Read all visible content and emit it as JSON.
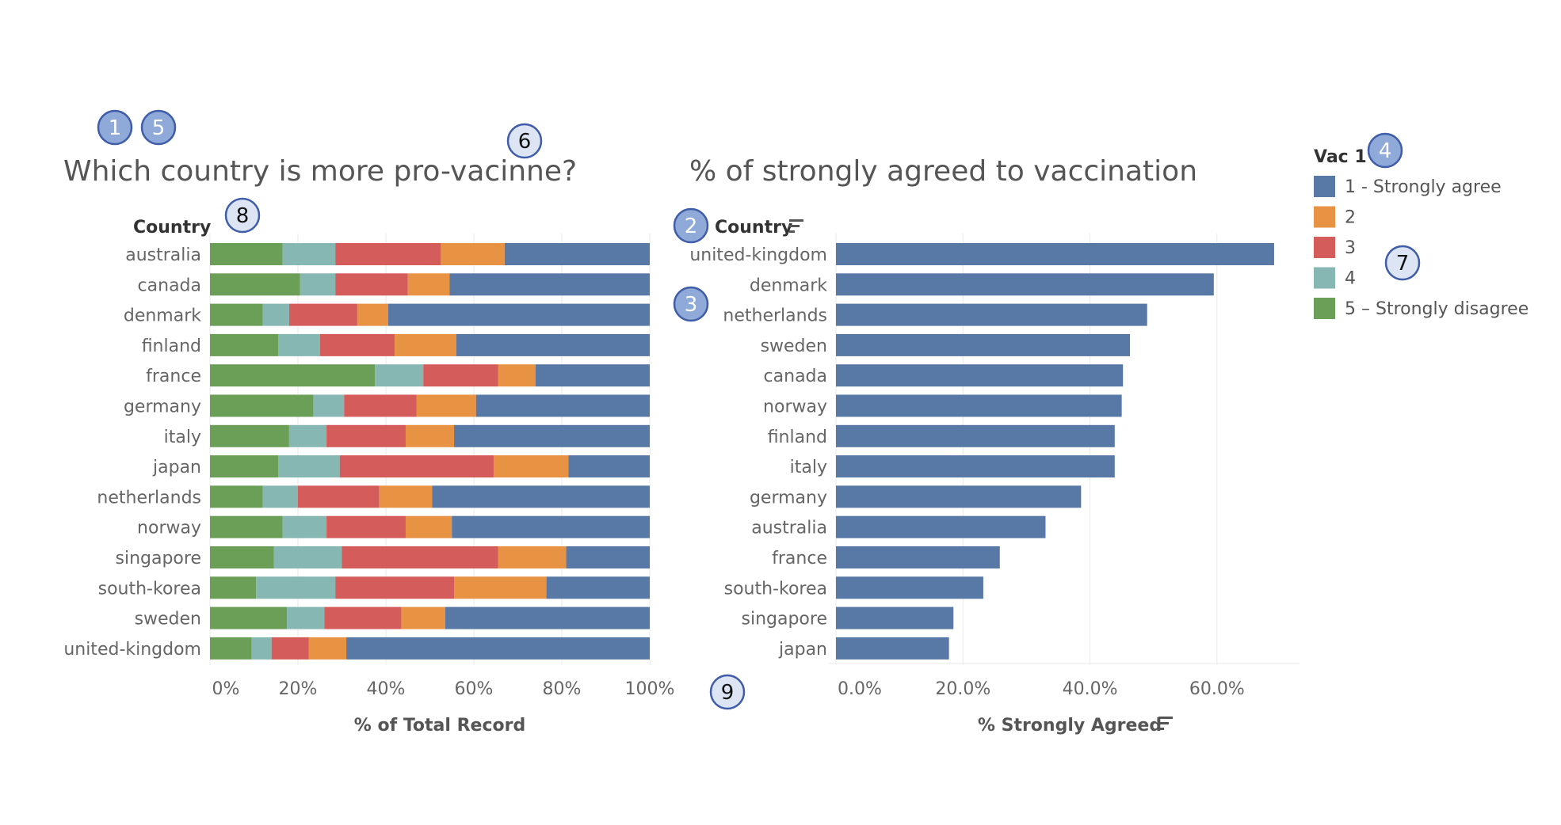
{
  "colors": {
    "l1": "#5878a6",
    "l2": "#e89243",
    "l3": "#d45c5b",
    "l4": "#86b7b2",
    "l5": "#6b9f58",
    "text_dark": "#333333",
    "text_mid": "#555555",
    "axis_text": "#666666",
    "grid": "#e9e9e9",
    "badge_blue_fill": "#8fa9d8",
    "badge_blue_stroke": "#3f5da8",
    "badge_white_fill": "#dde5f4",
    "badge_white_stroke": "#3f5da8"
  },
  "chart_data": [
    {
      "type": "bar",
      "stacked": true,
      "orientation": "horizontal",
      "title": "Which country is more pro-vacinne?",
      "row_header": "Country",
      "xlabel": "% of Total Record",
      "xlim": [
        0,
        100
      ],
      "xticks": [
        "0%",
        "20%",
        "40%",
        "60%",
        "80%",
        "100%"
      ],
      "xtick_values": [
        0,
        20,
        40,
        60,
        80,
        100
      ],
      "categories": [
        "australia",
        "canada",
        "denmark",
        "finland",
        "france",
        "germany",
        "italy",
        "japan",
        "netherlands",
        "norway",
        "singapore",
        "south-korea",
        "sweden",
        "united-kingdom"
      ],
      "series": [
        {
          "name": "5 – Strongly disagree",
          "color_key": "l5",
          "values": [
            16.5,
            20.5,
            12,
            15.5,
            37.5,
            23.5,
            18,
            15.5,
            12,
            16.5,
            14.5,
            10.5,
            17.5,
            9.5
          ]
        },
        {
          "name": "4",
          "color_key": "l4",
          "values": [
            12,
            8,
            6,
            9.5,
            11,
            7,
            8.5,
            14,
            8,
            10,
            15.5,
            18,
            8.5,
            4.5
          ]
        },
        {
          "name": "3",
          "color_key": "l3",
          "values": [
            24,
            16.5,
            15.5,
            17,
            17,
            16.5,
            18,
            35,
            18.5,
            18,
            35.5,
            27,
            17.5,
            8.5
          ]
        },
        {
          "name": "2",
          "color_key": "l2",
          "values": [
            14.5,
            9.5,
            7,
            14,
            8.5,
            13.5,
            11,
            17,
            12,
            10.5,
            15.5,
            21,
            10,
            8.5
          ]
        },
        {
          "name": "1 - Strongly agree",
          "color_key": "l1",
          "values": [
            33,
            45.5,
            59.5,
            44,
            26,
            39.5,
            44.5,
            18.5,
            49.5,
            45,
            19,
            23.5,
            46.5,
            69
          ]
        }
      ]
    },
    {
      "type": "bar",
      "orientation": "horizontal",
      "title": "% of strongly agreed to vaccination",
      "row_header": "Country",
      "xlabel": "% Strongly Agreed",
      "xlim": [
        0,
        72
      ],
      "xticks": [
        "0.0%",
        "20.0%",
        "40.0%",
        "60.0%"
      ],
      "xtick_values": [
        0,
        20,
        40,
        60
      ],
      "categories": [
        "united-kingdom",
        "denmark",
        "netherlands",
        "sweden",
        "canada",
        "norway",
        "finland",
        "italy",
        "germany",
        "australia",
        "france",
        "south-korea",
        "singapore",
        "japan"
      ],
      "values": [
        69.0,
        59.5,
        49.0,
        46.3,
        45.2,
        45.0,
        43.9,
        43.9,
        38.6,
        33.0,
        25.8,
        23.2,
        18.5,
        17.8
      ],
      "color_key": "l1"
    }
  ],
  "legend": {
    "title": "Vac 1",
    "items": [
      {
        "label": "1 - Strongly agree",
        "color_key": "l1"
      },
      {
        "label": "2",
        "color_key": "l2"
      },
      {
        "label": "3",
        "color_key": "l3"
      },
      {
        "label": "4",
        "color_key": "l4"
      },
      {
        "label": "5 – Strongly disagree",
        "color_key": "l5"
      }
    ]
  },
  "badges": [
    {
      "label": "1",
      "style": "blue"
    },
    {
      "label": "5",
      "style": "blue"
    },
    {
      "label": "6",
      "style": "white"
    },
    {
      "label": "8",
      "style": "white"
    },
    {
      "label": "2",
      "style": "blue"
    },
    {
      "label": "3",
      "style": "blue"
    },
    {
      "label": "4",
      "style": "blue"
    },
    {
      "label": "7",
      "style": "white"
    },
    {
      "label": "9",
      "style": "white"
    }
  ]
}
